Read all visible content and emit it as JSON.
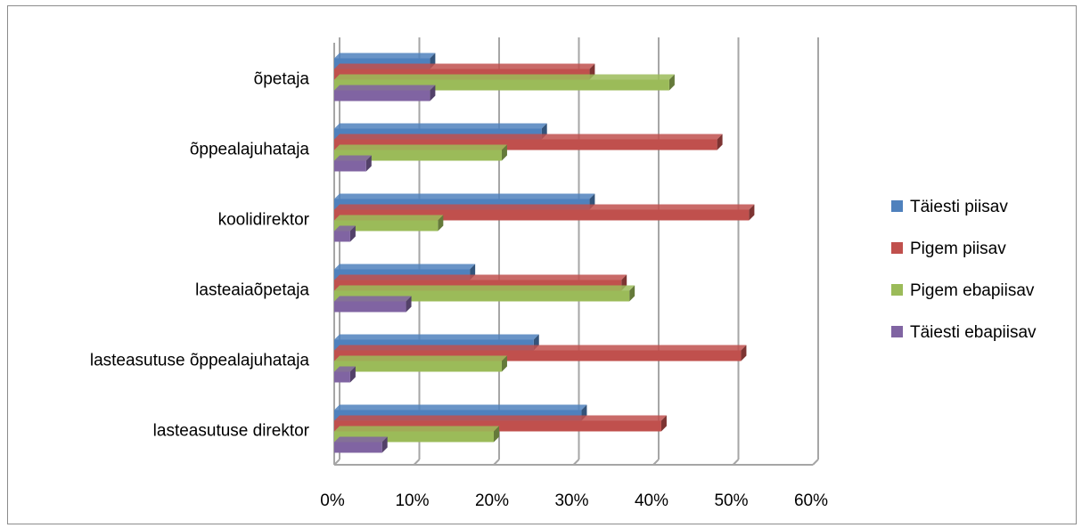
{
  "chart_data": {
    "type": "bar",
    "orientation": "horizontal",
    "categories": [
      "lasteasutuse direktor",
      "lasteasutuse õppealajuhataja",
      "lasteaiaõpetaja",
      "koolidirektor",
      "õppealajuhataja",
      "õpetaja"
    ],
    "series": [
      {
        "name": "Täiesti piisav",
        "color": "#4f81bd",
        "values": [
          31,
          25,
          17,
          32,
          26,
          12
        ]
      },
      {
        "name": "Pigem piisav",
        "color": "#c0504d",
        "values": [
          41,
          51,
          36,
          52,
          48,
          32
        ]
      },
      {
        "name": "Pigem ebapiisav",
        "color": "#9bbb59",
        "values": [
          20,
          21,
          37,
          13,
          21,
          42
        ]
      },
      {
        "name": "Täiesti ebapiisav",
        "color": "#8064a2",
        "values": [
          6,
          2,
          9,
          2,
          4,
          12
        ]
      }
    ],
    "xlim": [
      0,
      60
    ],
    "x_ticks": [
      "0%",
      "10%",
      "20%",
      "30%",
      "40%",
      "50%",
      "60%"
    ],
    "grid": true,
    "legend_position": "right"
  }
}
